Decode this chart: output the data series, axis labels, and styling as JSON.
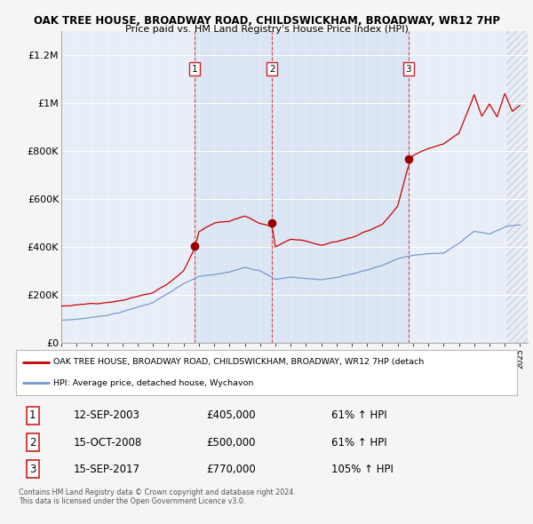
{
  "title": "OAK TREE HOUSE, BROADWAY ROAD, CHILDSWICKHAM, BROADWAY, WR12 7HP",
  "subtitle": "Price paid vs. HM Land Registry's House Price Index (HPI)",
  "background_color": "#f5f5f5",
  "plot_bg_color": "#e8eef8",
  "red_line_color": "#cc0000",
  "blue_line_color": "#7799cc",
  "sale_marker_color": "#990000",
  "dashed_line_color": "#cc2222",
  "ylim": [
    0,
    1300000
  ],
  "yticks": [
    0,
    200000,
    400000,
    600000,
    800000,
    1000000,
    1200000
  ],
  "ytick_labels": [
    "£0",
    "£200K",
    "£400K",
    "£600K",
    "£800K",
    "£1M",
    "£1.2M"
  ],
  "x_start_year": 1995,
  "x_end_year": 2025,
  "sale_dates": [
    2003.71,
    2008.79,
    2017.71
  ],
  "sale_prices": [
    405000,
    500000,
    770000
  ],
  "sale_labels": [
    "1",
    "2",
    "3"
  ],
  "legend_red_label": "OAK TREE HOUSE, BROADWAY ROAD, CHILDSWICKHAM, BROADWAY, WR12 7HP (detach",
  "legend_blue_label": "HPI: Average price, detached house, Wychavon",
  "table_rows": [
    [
      "1",
      "12-SEP-2003",
      "£405,000",
      "61% ↑ HPI"
    ],
    [
      "2",
      "15-OCT-2008",
      "£500,000",
      "61% ↑ HPI"
    ],
    [
      "3",
      "15-SEP-2017",
      "£770,000",
      "105% ↑ HPI"
    ]
  ],
  "footer": "Contains HM Land Registry data © Crown copyright and database right 2024.\nThis data is licensed under the Open Government Licence v3.0.",
  "hpi_key_years": [
    1995,
    1996,
    1997,
    1998,
    1999,
    2000,
    2001,
    2002,
    2003,
    2004,
    2005,
    2006,
    2007,
    2008,
    2009,
    2010,
    2011,
    2012,
    2013,
    2014,
    2015,
    2016,
    2017,
    2018,
    2019,
    2020,
    2021,
    2022,
    2023,
    2024,
    2025
  ],
  "hpi_key_vals": [
    95000,
    100000,
    108000,
    118000,
    133000,
    152000,
    172000,
    210000,
    248000,
    278000,
    285000,
    295000,
    318000,
    305000,
    268000,
    278000,
    272000,
    268000,
    278000,
    292000,
    308000,
    328000,
    355000,
    368000,
    378000,
    378000,
    420000,
    470000,
    460000,
    490000,
    500000
  ],
  "red_key_years": [
    1995,
    1997,
    1999,
    2001,
    2002,
    2003,
    2003.71,
    2004,
    2005,
    2006,
    2007,
    2008,
    2008.79,
    2009,
    2010,
    2011,
    2012,
    2013,
    2014,
    2015,
    2016,
    2017,
    2017.71,
    2018,
    2019,
    2020,
    2021,
    2022,
    2022.5,
    2023,
    2023.5,
    2024,
    2024.5,
    2025
  ],
  "red_key_vals": [
    155000,
    165000,
    185000,
    215000,
    255000,
    310000,
    405000,
    475000,
    510000,
    520000,
    540000,
    510000,
    500000,
    415000,
    450000,
    445000,
    430000,
    445000,
    465000,
    490000,
    520000,
    600000,
    770000,
    810000,
    840000,
    860000,
    900000,
    1060000,
    970000,
    1020000,
    965000,
    1060000,
    985000,
    1010000
  ]
}
